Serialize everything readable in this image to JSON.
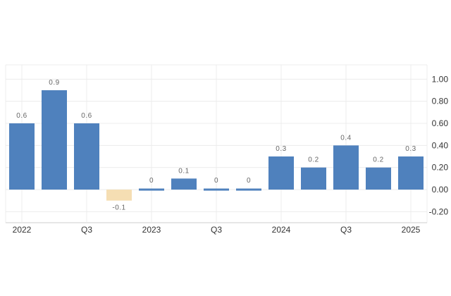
{
  "chart_data": {
    "type": "bar",
    "categories": [
      "2022 Q1",
      "2022 Q2",
      "2022 Q3",
      "2022 Q4",
      "2023 Q1",
      "2023 Q2",
      "2023 Q3",
      "2023 Q4",
      "2024 Q1",
      "2024 Q2",
      "2024 Q3",
      "2024 Q4",
      "2025 Q1"
    ],
    "values": [
      0.6,
      0.9,
      0.6,
      -0.1,
      0,
      0.1,
      0,
      0,
      0.3,
      0.2,
      0.4,
      0.2,
      0.3
    ],
    "data_labels": [
      "0.6",
      "0.9",
      "0.6",
      "-0.1",
      "0",
      "0.1",
      "0",
      "0",
      "0.3",
      "0.2",
      "0.4",
      "0.2",
      "0.3"
    ],
    "x_tick_labels": [
      {
        "index": 0,
        "label": "2022"
      },
      {
        "index": 2,
        "label": "Q3"
      },
      {
        "index": 4,
        "label": "2023"
      },
      {
        "index": 6,
        "label": "Q3"
      },
      {
        "index": 8,
        "label": "2024"
      },
      {
        "index": 10,
        "label": "Q3"
      },
      {
        "index": 12,
        "label": "2025"
      }
    ],
    "y_ticks": [
      1.0,
      0.8,
      0.6,
      0.4,
      0.2,
      0.0,
      -0.2
    ],
    "y_tick_labels": [
      "1.00",
      "0.80",
      "0.60",
      "0.40",
      "0.20",
      "0.00",
      "-0.20"
    ],
    "ylim": [
      -0.3,
      1.13
    ],
    "y_axis_side": "right",
    "grid": true,
    "title": "",
    "xlabel": "",
    "ylabel": "",
    "colors": {
      "positive": "#4f81bd",
      "negative": "#f5deb3",
      "grid": "#ececec",
      "text": "#333333",
      "data_label": "#666666"
    }
  }
}
